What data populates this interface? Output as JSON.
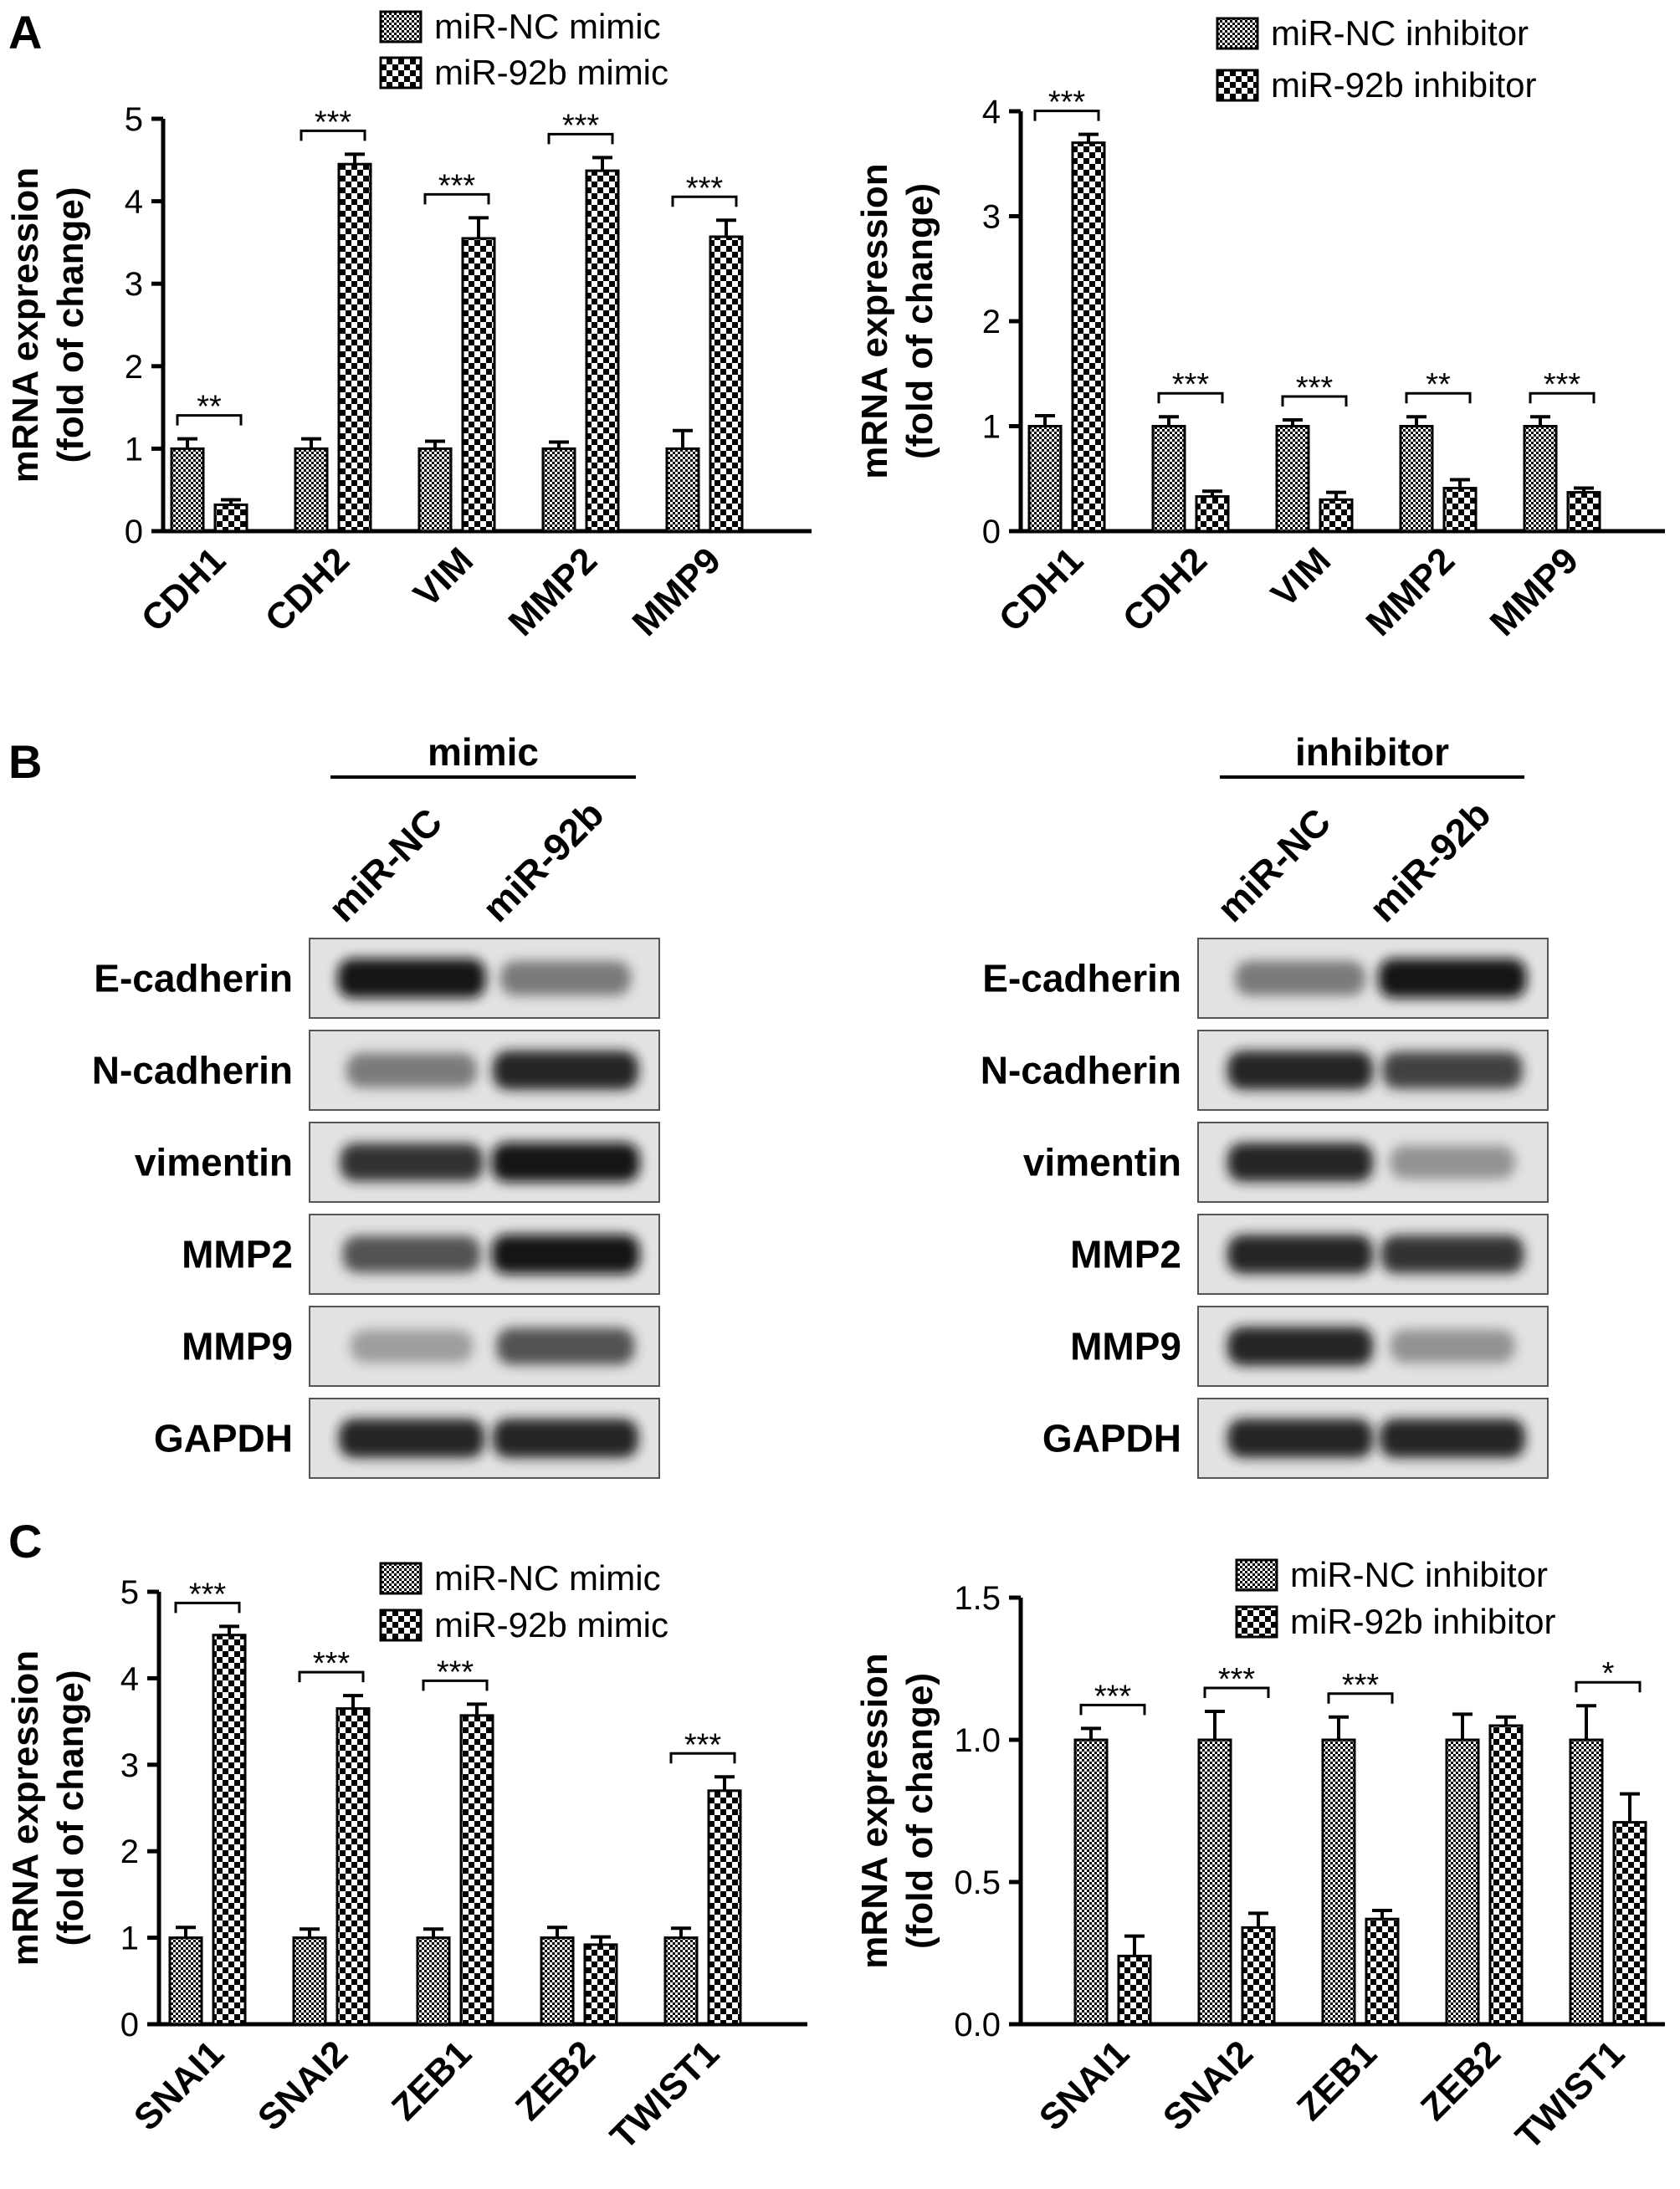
{
  "panel_labels": [
    "A",
    "B",
    "C"
  ],
  "chart_data": [
    {
      "id": "A1",
      "type": "bar",
      "categories": [
        "CDH1",
        "CDH2",
        "VIM",
        "MMP2",
        "MMP9"
      ],
      "series": [
        {
          "name": "miR-NC mimic",
          "values": [
            1.0,
            1.0,
            1.0,
            1.0,
            1.0
          ],
          "errors": [
            0.12,
            0.12,
            0.09,
            0.08,
            0.22
          ]
        },
        {
          "name": "miR-92b mimic",
          "values": [
            0.32,
            4.45,
            3.55,
            4.37,
            3.57
          ],
          "errors": [
            0.06,
            0.12,
            0.25,
            0.16,
            0.2
          ]
        }
      ],
      "significance": [
        "**",
        "***",
        "***",
        "***",
        "***"
      ],
      "ylabel": "mRNA expression",
      "ylabel2": "(fold of change)",
      "ylim": [
        0,
        5
      ],
      "yticks": [
        0,
        1,
        2,
        3,
        4,
        5
      ],
      "ytick_labels": [
        "0",
        "1",
        "2",
        "3",
        "4",
        "5"
      ],
      "legend_position": "top"
    },
    {
      "id": "A2",
      "type": "bar",
      "categories": [
        "CDH1",
        "CDH2",
        "VIM",
        "MMP2",
        "MMP9"
      ],
      "series": [
        {
          "name": "miR-NC inhibitor",
          "values": [
            1.0,
            1.0,
            1.0,
            1.0,
            1.0
          ],
          "errors": [
            0.1,
            0.09,
            0.06,
            0.09,
            0.09
          ]
        },
        {
          "name": "miR-92b inhibitor",
          "values": [
            3.7,
            0.33,
            0.3,
            0.41,
            0.37
          ],
          "errors": [
            0.08,
            0.05,
            0.07,
            0.08,
            0.04
          ]
        }
      ],
      "significance": [
        "***",
        "***",
        "***",
        "**",
        "***"
      ],
      "ylabel": "mRNA expression",
      "ylabel2": "(fold of change)",
      "ylim": [
        0,
        4
      ],
      "yticks": [
        0,
        1,
        2,
        3,
        4
      ],
      "ytick_labels": [
        "0",
        "1",
        "2",
        "3",
        "4"
      ],
      "legend_position": "top-right"
    },
    {
      "id": "C1",
      "type": "bar",
      "categories": [
        "SNAI1",
        "SNAI2",
        "ZEB1",
        "ZEB2",
        "TWIST1"
      ],
      "series": [
        {
          "name": "miR-NC mimic",
          "values": [
            1.0,
            1.0,
            1.0,
            1.0,
            1.0
          ],
          "errors": [
            0.12,
            0.1,
            0.1,
            0.12,
            0.11
          ]
        },
        {
          "name": "miR-92b mimic",
          "values": [
            4.5,
            3.65,
            3.57,
            0.92,
            2.7
          ],
          "errors": [
            0.1,
            0.15,
            0.13,
            0.09,
            0.16
          ]
        }
      ],
      "significance": [
        "***",
        "***",
        "***",
        "",
        "***"
      ],
      "ylabel": "mRNA expression",
      "ylabel2": "(fold of change)",
      "ylim": [
        0,
        5
      ],
      "yticks": [
        0,
        1,
        2,
        3,
        4,
        5
      ],
      "ytick_labels": [
        "0",
        "1",
        "2",
        "3",
        "4",
        "5"
      ],
      "legend_position": "top-right"
    },
    {
      "id": "C2",
      "type": "bar",
      "categories": [
        "SNAI1",
        "SNAI2",
        "ZEB1",
        "ZEB2",
        "TWIST1"
      ],
      "series": [
        {
          "name": "miR-NC inhibitor",
          "values": [
            1.0,
            1.0,
            1.0,
            1.0,
            1.0
          ],
          "errors": [
            0.04,
            0.1,
            0.08,
            0.09,
            0.12
          ]
        },
        {
          "name": "miR-92b inhibitor",
          "values": [
            0.24,
            0.34,
            0.37,
            1.05,
            0.71
          ],
          "errors": [
            0.07,
            0.05,
            0.03,
            0.03,
            0.1
          ]
        }
      ],
      "significance": [
        "***",
        "***",
        "***",
        "",
        "*"
      ],
      "ylabel": "mRNA expression",
      "ylabel2": "(fold of change)",
      "ylim": [
        0,
        1.5
      ],
      "yticks": [
        0,
        0.5,
        1.0,
        1.5
      ],
      "ytick_labels": [
        "0.0",
        "0.5",
        "1.0",
        "1.5"
      ],
      "legend_position": "top-right"
    }
  ],
  "western_blots": [
    {
      "group": "mimic",
      "lanes": [
        "miR-NC",
        "miR-92b"
      ],
      "proteins": [
        "E-cadherin",
        "N-cadherin",
        "vimentin",
        "MMP2",
        "MMP9",
        "GAPDH"
      ],
      "intensity": [
        [
          0.95,
          0.6
        ],
        [
          0.6,
          0.9
        ],
        [
          0.85,
          0.95
        ],
        [
          0.75,
          0.95
        ],
        [
          0.45,
          0.75
        ],
        [
          0.9,
          0.9
        ]
      ]
    },
    {
      "group": "inhibitor",
      "lanes": [
        "miR-NC",
        "miR-92b"
      ],
      "proteins": [
        "E-cadherin",
        "N-cadherin",
        "vimentin",
        "MMP2",
        "MMP9",
        "GAPDH"
      ],
      "intensity": [
        [
          0.6,
          0.95
        ],
        [
          0.9,
          0.8
        ],
        [
          0.9,
          0.5
        ],
        [
          0.9,
          0.85
        ],
        [
          0.9,
          0.5
        ],
        [
          0.9,
          0.9
        ]
      ]
    }
  ]
}
